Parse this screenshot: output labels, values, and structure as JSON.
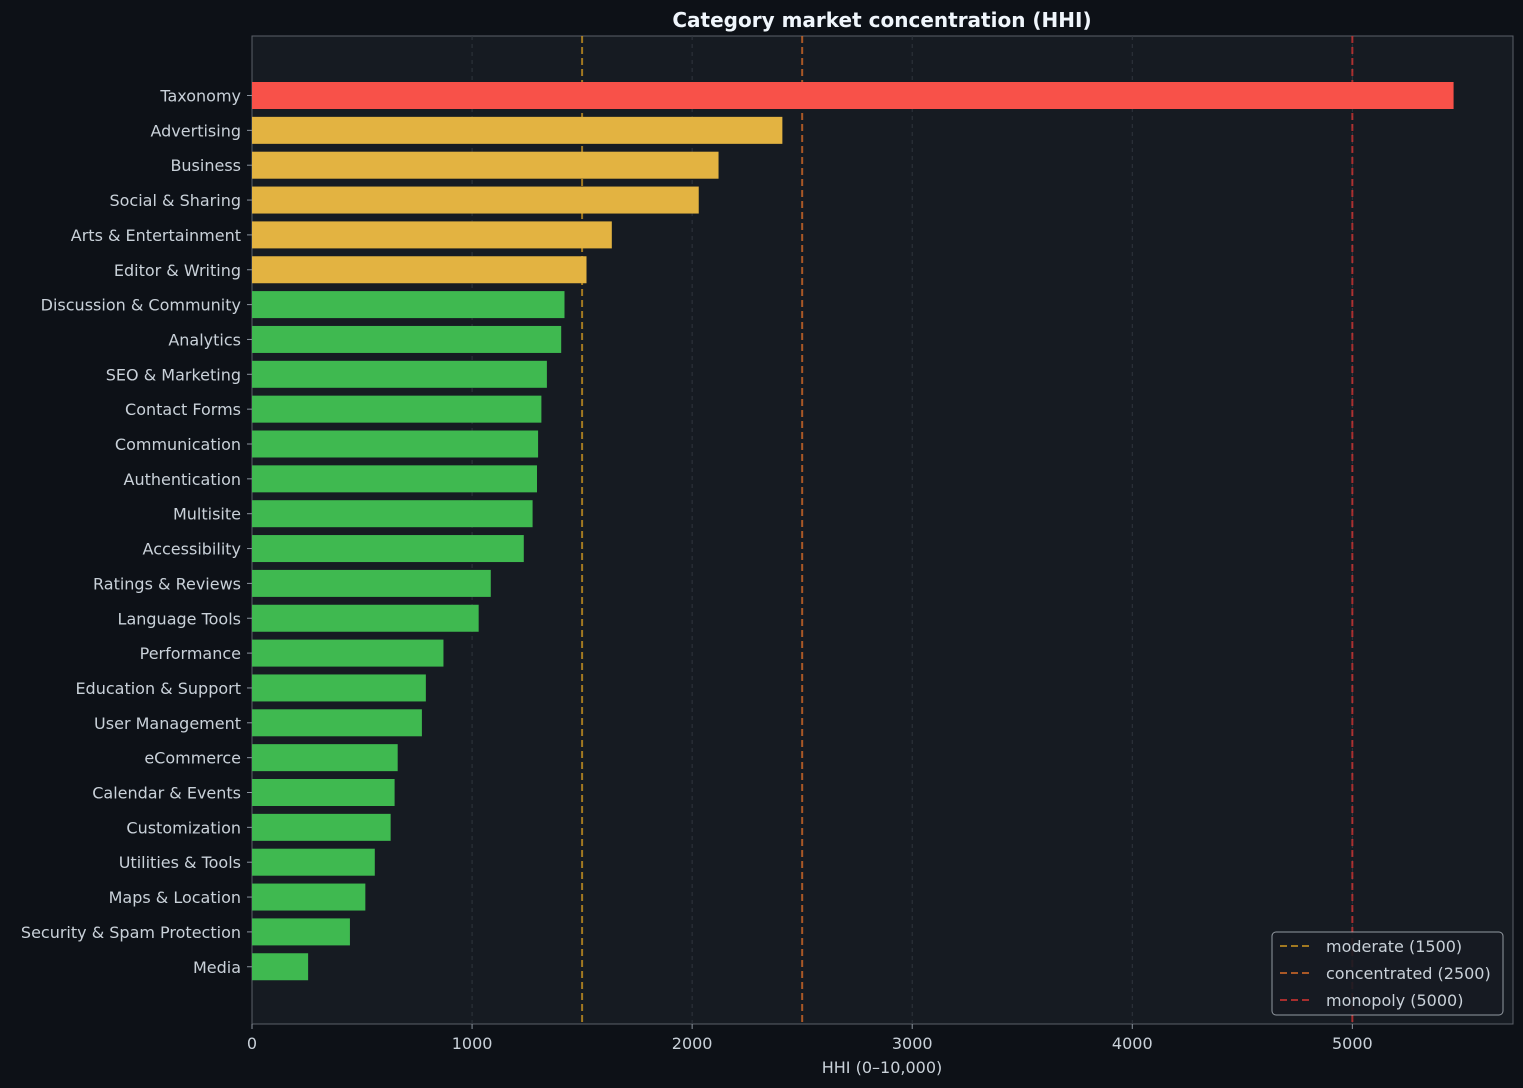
{
  "chart_data": {
    "type": "bar",
    "orientation": "horizontal",
    "title": "Category market concentration (HHI)",
    "xlabel": "HHI (0–10,000)",
    "ylabel": "",
    "xlim": [
      0,
      5730
    ],
    "xticks": [
      0,
      1000,
      2000,
      3000,
      4000,
      5000
    ],
    "grid": "vertical dashed",
    "legend_position": "bottom-right",
    "categories": [
      "Taxonomy",
      "Advertising",
      "Business",
      "Social & Sharing",
      "Arts & Entertainment",
      "Editor & Writing",
      "Discussion & Community",
      "Analytics",
      "SEO & Marketing",
      "Contact Forms",
      "Communication",
      "Authentication",
      "Multisite",
      "Accessibility",
      "Ratings & Reviews",
      "Language Tools",
      "Performance",
      "Education & Support",
      "User Management",
      "eCommerce",
      "Calendar & Events",
      "Customization",
      "Utilities & Tools",
      "Maps & Location",
      "Security & Spam Protection",
      "Media"
    ],
    "values": [
      5460,
      2410,
      2120,
      2030,
      1635,
      1520,
      1420,
      1405,
      1340,
      1315,
      1300,
      1295,
      1275,
      1235,
      1085,
      1030,
      870,
      790,
      772,
      662,
      648,
      630,
      558,
      515,
      445,
      255
    ],
    "bar_colors": [
      "#f85149",
      "#e3b341",
      "#e3b341",
      "#e3b341",
      "#e3b341",
      "#e3b341",
      "#3fb950",
      "#3fb950",
      "#3fb950",
      "#3fb950",
      "#3fb950",
      "#3fb950",
      "#3fb950",
      "#3fb950",
      "#3fb950",
      "#3fb950",
      "#3fb950",
      "#3fb950",
      "#3fb950",
      "#3fb950",
      "#3fb950",
      "#3fb950",
      "#3fb950",
      "#3fb950",
      "#3fb950",
      "#3fb950"
    ],
    "thresholds": [
      {
        "name": "moderate (1500)",
        "value": 1500,
        "color": "#d29922"
      },
      {
        "name": "concentrated (2500)",
        "value": 2500,
        "color": "#db6d28"
      },
      {
        "name": "monopoly (5000)",
        "value": 5000,
        "color": "#da3633"
      }
    ]
  }
}
